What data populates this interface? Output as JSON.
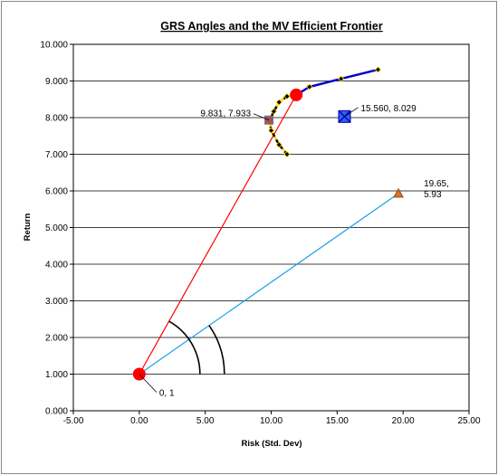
{
  "chart_data": {
    "type": "scatter",
    "title": "GRS Angles and the MV Efficient Frontier",
    "xlabel": "Risk  (Std. Dev)",
    "ylabel": "Return",
    "xlim": [
      -5,
      25
    ],
    "ylim": [
      0,
      10
    ],
    "xticks": [
      {
        "value": -5,
        "label": "-5.00"
      },
      {
        "value": 0,
        "label": "0.00"
      },
      {
        "value": 5,
        "label": "5.00"
      },
      {
        "value": 10,
        "label": "10.00"
      },
      {
        "value": 15,
        "label": "15.00"
      },
      {
        "value": 20,
        "label": "20.00"
      },
      {
        "value": 25,
        "label": "25.00"
      }
    ],
    "yticks": [
      {
        "value": 0,
        "label": "0.000"
      },
      {
        "value": 1,
        "label": "1.000"
      },
      {
        "value": 2,
        "label": "2.000"
      },
      {
        "value": 3,
        "label": "3.000"
      },
      {
        "value": 4,
        "label": "4.000"
      },
      {
        "value": 5,
        "label": "5.000"
      },
      {
        "value": 6,
        "label": "6.000"
      },
      {
        "value": 7,
        "label": "7.000"
      },
      {
        "value": 8,
        "label": "8.000"
      },
      {
        "value": 9,
        "label": "9.000"
      },
      {
        "value": 10,
        "label": "10.000"
      }
    ],
    "grid": true,
    "series": [
      {
        "color": "#000000",
        "dash": true,
        "x": [
          11.2,
          10.6,
          10.0,
          9.9,
          10.2,
          10.6,
          11.2,
          11.9
        ],
        "values": [
          7.0,
          7.26,
          7.65,
          7.93,
          8.17,
          8.42,
          8.58,
          8.62
        ]
      },
      {
        "color": "#0000cc",
        "dash": false,
        "x": [
          11.9,
          12.9,
          15.3,
          18.1
        ],
        "values": [
          8.62,
          8.84,
          9.06,
          9.31
        ]
      }
    ],
    "lines": [
      {
        "color": "#ff0000",
        "x": [
          0,
          11.9
        ],
        "values": [
          1,
          8.62
        ]
      },
      {
        "color": "#1ea0e6",
        "x": [
          0,
          19.65
        ],
        "values": [
          1,
          5.93
        ]
      }
    ],
    "points": [
      {
        "x": 0,
        "y": 1,
        "color": "#ff0000",
        "marker": "circle",
        "label": [
          "0, 1"
        ]
      },
      {
        "x": 11.9,
        "y": 8.62,
        "color": "#ff0000",
        "marker": "circle"
      },
      {
        "x": 9.831,
        "y": 7.933,
        "color": "#a0525a",
        "marker": "square",
        "label": [
          "9.831, 7.933"
        ]
      },
      {
        "x": 15.56,
        "y": 8.029,
        "color": "#2f5cff",
        "marker": "xsquare",
        "label": [
          "15.560, 8.029"
        ]
      },
      {
        "x": 19.65,
        "y": 5.93,
        "color": "#e07020",
        "marker": "triangle",
        "label": [
          "19.65,",
          "5.93"
        ]
      }
    ]
  }
}
